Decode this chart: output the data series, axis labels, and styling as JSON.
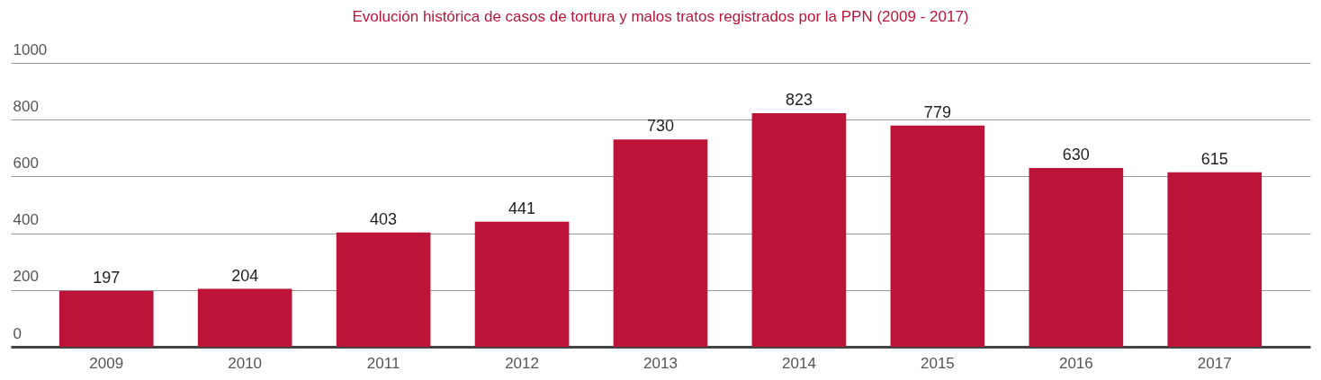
{
  "chart_data": {
    "type": "bar",
    "title": "Evolución histórica de casos de tortura y malos tratos registrados por la PPN (2009 - 2017)",
    "categories": [
      "2009",
      "2010",
      "2011",
      "2012",
      "2013",
      "2014",
      "2015",
      "2016",
      "2017"
    ],
    "values": [
      197,
      204,
      403,
      441,
      730,
      823,
      779,
      630,
      615
    ],
    "color": "#bc1439",
    "ylim": [
      0,
      1000
    ],
    "yticks": [
      0,
      200,
      400,
      600,
      800,
      1000
    ],
    "grid": "y",
    "data_labels": true
  }
}
